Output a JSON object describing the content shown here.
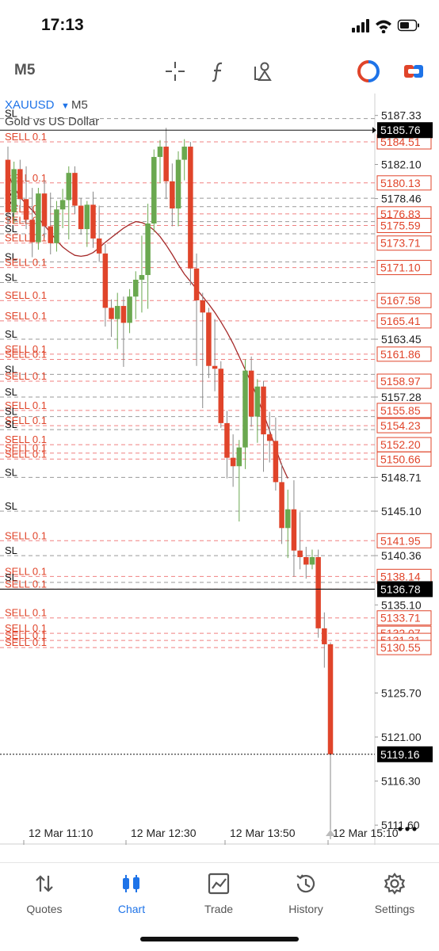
{
  "status": {
    "time": "17:13"
  },
  "toolbar": {
    "timeframe": "M5"
  },
  "header": {
    "symbol": "XAUUSD",
    "symbol_timeframe": "M5",
    "description": "Gold vs US Dollar"
  },
  "colors": {
    "bull": "#6aa84f",
    "bear": "#e0442a",
    "ma": "#a52a2a",
    "sell_line": "#f08080",
    "accent": "#1e73e8",
    "price_tag": "#000000"
  },
  "price_axis": {
    "labels": [
      "5187.33",
      "5182.10",
      "5178.46",
      "5163.45",
      "5157.28",
      "5148.71",
      "5145.10",
      "5140.36",
      "5135.10",
      "5125.70",
      "5121.00",
      "5116.30",
      "5111.60"
    ]
  },
  "price_tags": {
    "current_bid": "5185.76",
    "level_mid": "5136.78",
    "last_price": "5119.16"
  },
  "order_tags": [
    "5184.51",
    "5180.13",
    "5176.83",
    "5175.59",
    "5173.71",
    "5171.10",
    "5167.58",
    "5165.41",
    "5161.86",
    "5158.97",
    "5155.85",
    "5154.23",
    "5152.20",
    "5150.66",
    "5141.95",
    "5138.14",
    "5133.71",
    "5132.07",
    "5131.31",
    "5130.55"
  ],
  "order_lines": [
    {
      "label": "SL",
      "price": 5187.0,
      "kind": "sl"
    },
    {
      "label": "SELL 0.1",
      "price": 5184.51,
      "kind": "sell"
    },
    {
      "label": "SELL 0.1",
      "price": 5180.13,
      "kind": "sell"
    },
    {
      "label": "SL",
      "price": 5178.5,
      "kind": "sl"
    },
    {
      "label": "SL",
      "price": 5177.6,
      "kind": "sl"
    },
    {
      "label": "SELL 0.1",
      "price": 5176.83,
      "kind": "sell"
    },
    {
      "label": "SL",
      "price": 5176.0,
      "kind": "sl"
    },
    {
      "label": "SELL 0.1",
      "price": 5175.59,
      "kind": "sell"
    },
    {
      "label": "SL",
      "price": 5174.7,
      "kind": "sl"
    },
    {
      "label": "SELL 0.1",
      "price": 5173.71,
      "kind": "sell"
    },
    {
      "label": "SL",
      "price": 5171.7,
      "kind": "sl"
    },
    {
      "label": "SELL 0.1",
      "price": 5171.1,
      "kind": "sell"
    },
    {
      "label": "SL",
      "price": 5169.5,
      "kind": "sl"
    },
    {
      "label": "SELL 0.1",
      "price": 5167.58,
      "kind": "sell"
    },
    {
      "label": "SELL 0.1",
      "price": 5165.41,
      "kind": "sell"
    },
    {
      "label": "SL",
      "price": 5163.45,
      "kind": "sl"
    },
    {
      "label": "SELL 0.1",
      "price": 5161.86,
      "kind": "sell"
    },
    {
      "label": "SELL 0.1",
      "price": 5161.3,
      "kind": "sell"
    },
    {
      "label": "SL",
      "price": 5159.7,
      "kind": "sl"
    },
    {
      "label": "SELL 0.1",
      "price": 5158.97,
      "kind": "sell"
    },
    {
      "label": "SL",
      "price": 5157.28,
      "kind": "sl"
    },
    {
      "label": "SELL 0.1",
      "price": 5155.85,
      "kind": "sell"
    },
    {
      "label": "SL",
      "price": 5155.2,
      "kind": "sl"
    },
    {
      "label": "SELL 0.1",
      "price": 5154.23,
      "kind": "sell"
    },
    {
      "label": "SL",
      "price": 5153.8,
      "kind": "sl"
    },
    {
      "label": "SELL 0.1",
      "price": 5152.2,
      "kind": "sell"
    },
    {
      "label": "SELL 0.1",
      "price": 5151.3,
      "kind": "sell"
    },
    {
      "label": "SELL 0.1",
      "price": 5150.66,
      "kind": "sell"
    },
    {
      "label": "SL",
      "price": 5148.71,
      "kind": "sl"
    },
    {
      "label": "SL",
      "price": 5145.1,
      "kind": "sl"
    },
    {
      "label": "SELL 0.1",
      "price": 5141.95,
      "kind": "sell"
    },
    {
      "label": "SL",
      "price": 5140.36,
      "kind": "sl"
    },
    {
      "label": "SELL 0.1",
      "price": 5138.14,
      "kind": "sell"
    },
    {
      "label": "SL",
      "price": 5137.5,
      "kind": "sl"
    },
    {
      "label": "SELL 0.1",
      "price": 5136.78,
      "kind": "sell"
    },
    {
      "label": "SELL 0.1",
      "price": 5133.71,
      "kind": "sell"
    },
    {
      "label": "SELL 0.1",
      "price": 5132.07,
      "kind": "sell"
    },
    {
      "label": "SELL 0.1",
      "price": 5131.31,
      "kind": "sell"
    },
    {
      "label": "SELL 0.1",
      "price": 5130.55,
      "kind": "sell"
    }
  ],
  "time_axis": {
    "labels": [
      "12 Mar 11:10",
      "12 Mar 12:30",
      "12 Mar 13:50",
      "12 Mar 15:10"
    ]
  },
  "chart_data": {
    "type": "candlestick",
    "symbol": "XAUUSD",
    "timeframe": "M5",
    "ylim": [
      5109.5,
      5189.5
    ],
    "x": [
      "12 Mar 11:10",
      "12 Mar 12:30",
      "12 Mar 13:50",
      "12 Mar 15:10"
    ],
    "candles": [
      [
        5182.6,
        5184.0,
        5175.5,
        5177.0
      ],
      [
        5177.0,
        5182.4,
        5175.8,
        5181.6
      ],
      [
        5181.6,
        5182.6,
        5177.4,
        5178.4
      ],
      [
        5178.4,
        5181.9,
        5175.2,
        5176.2
      ],
      [
        5176.2,
        5179.6,
        5172.2,
        5173.8
      ],
      [
        5173.8,
        5179.6,
        5173.0,
        5179.0
      ],
      [
        5179.0,
        5180.4,
        5174.3,
        5175.5
      ],
      [
        5175.5,
        5179.1,
        5172.5,
        5173.7
      ],
      [
        5173.7,
        5178.2,
        5172.8,
        5177.3
      ],
      [
        5177.3,
        5179.5,
        5175.3,
        5178.3
      ],
      [
        5178.3,
        5181.9,
        5174.1,
        5181.2
      ],
      [
        5181.2,
        5181.9,
        5176.8,
        5177.7
      ],
      [
        5177.7,
        5178.5,
        5174.6,
        5175.2
      ],
      [
        5175.2,
        5178.2,
        5173.3,
        5177.8
      ],
      [
        5177.8,
        5179.2,
        5173.2,
        5174.2
      ],
      [
        5174.2,
        5177.7,
        5171.7,
        5172.6
      ],
      [
        5172.6,
        5173.6,
        5164.8,
        5166.8
      ],
      [
        5166.8,
        5167.7,
        5163.7,
        5165.6
      ],
      [
        5165.6,
        5168.4,
        5162.4,
        5167.0
      ],
      [
        5167.0,
        5168.0,
        5160.5,
        5165.2
      ],
      [
        5165.2,
        5168.8,
        5164.1,
        5168.0
      ],
      [
        5168.0,
        5170.7,
        5165.6,
        5169.8
      ],
      [
        5169.8,
        5174.5,
        5166.3,
        5170.3
      ],
      [
        5170.3,
        5177.9,
        5166.7,
        5175.8
      ],
      [
        5175.8,
        5183.7,
        5174.9,
        5182.9
      ],
      [
        5182.9,
        5184.7,
        5180.1,
        5184.0
      ],
      [
        5184.0,
        5186.0,
        5178.4,
        5180.3
      ],
      [
        5180.3,
        5182.2,
        5175.5,
        5177.4
      ],
      [
        5177.4,
        5183.5,
        5175.5,
        5182.6
      ],
      [
        5182.6,
        5184.8,
        5180.4,
        5184.0
      ],
      [
        5184.0,
        5184.5,
        5169.2,
        5171.0
      ],
      [
        5171.0,
        5172.6,
        5160.6,
        5167.6
      ],
      [
        5167.6,
        5168.4,
        5156.1,
        5166.3
      ],
      [
        5166.3,
        5166.8,
        5159.3,
        5160.6
      ],
      [
        5160.6,
        5165.6,
        5157.9,
        5160.3
      ],
      [
        5160.3,
        5161.1,
        5154.0,
        5154.5
      ],
      [
        5154.5,
        5155.8,
        5148.6,
        5150.8
      ],
      [
        5150.8,
        5153.3,
        5147.7,
        5149.9
      ],
      [
        5149.9,
        5152.7,
        5144.0,
        5151.9
      ],
      [
        5151.9,
        5161.3,
        5149.6,
        5160.1
      ],
      [
        5160.1,
        5161.6,
        5154.1,
        5155.2
      ],
      [
        5155.2,
        5159.2,
        5152.4,
        5158.4
      ],
      [
        5158.4,
        5159.0,
        5149.3,
        5153.3
      ],
      [
        5153.3,
        5155.7,
        5150.3,
        5152.6
      ],
      [
        5152.6,
        5155.1,
        5147.3,
        5148.2
      ],
      [
        5148.2,
        5150.2,
        5141.6,
        5143.3
      ],
      [
        5143.3,
        5147.4,
        5140.1,
        5145.3
      ],
      [
        5145.3,
        5148.4,
        5138.1,
        5140.9
      ],
      [
        5140.9,
        5145.0,
        5138.9,
        5140.2
      ],
      [
        5140.2,
        5141.3,
        5137.9,
        5139.4
      ],
      [
        5139.4,
        5141.0,
        5138.9,
        5140.2
      ],
      [
        5140.2,
        5141.0,
        5131.6,
        5132.6
      ],
      [
        5132.6,
        5134.3,
        5128.4,
        5130.9
      ],
      [
        5130.9,
        5131.1,
        5110.1,
        5119.16
      ]
    ],
    "moving_average": [
      5181.0,
      5179.7,
      5178.6,
      5177.9,
      5177.2,
      5176.4,
      5175.6,
      5174.8,
      5174.0,
      5173.3,
      5172.8,
      5172.4,
      5172.3,
      5172.4,
      5172.7,
      5173.2,
      5173.8,
      5174.3,
      5174.8,
      5175.3,
      5175.7,
      5176.0,
      5175.9,
      5175.6,
      5175.1,
      5174.4,
      5173.5,
      5172.5,
      5171.4,
      5170.4,
      5169.6,
      5168.8,
      5168.0,
      5167.2,
      5166.3,
      5165.3,
      5164.2,
      5163.0,
      5161.6,
      5160.2,
      5158.8,
      5157.2,
      5155.5,
      5153.7,
      5151.8,
      5150.0,
      5148.6
    ]
  },
  "nav": {
    "items": [
      {
        "label": "Quotes"
      },
      {
        "label": "Chart"
      },
      {
        "label": "Trade"
      },
      {
        "label": "History"
      },
      {
        "label": "Settings"
      }
    ]
  }
}
